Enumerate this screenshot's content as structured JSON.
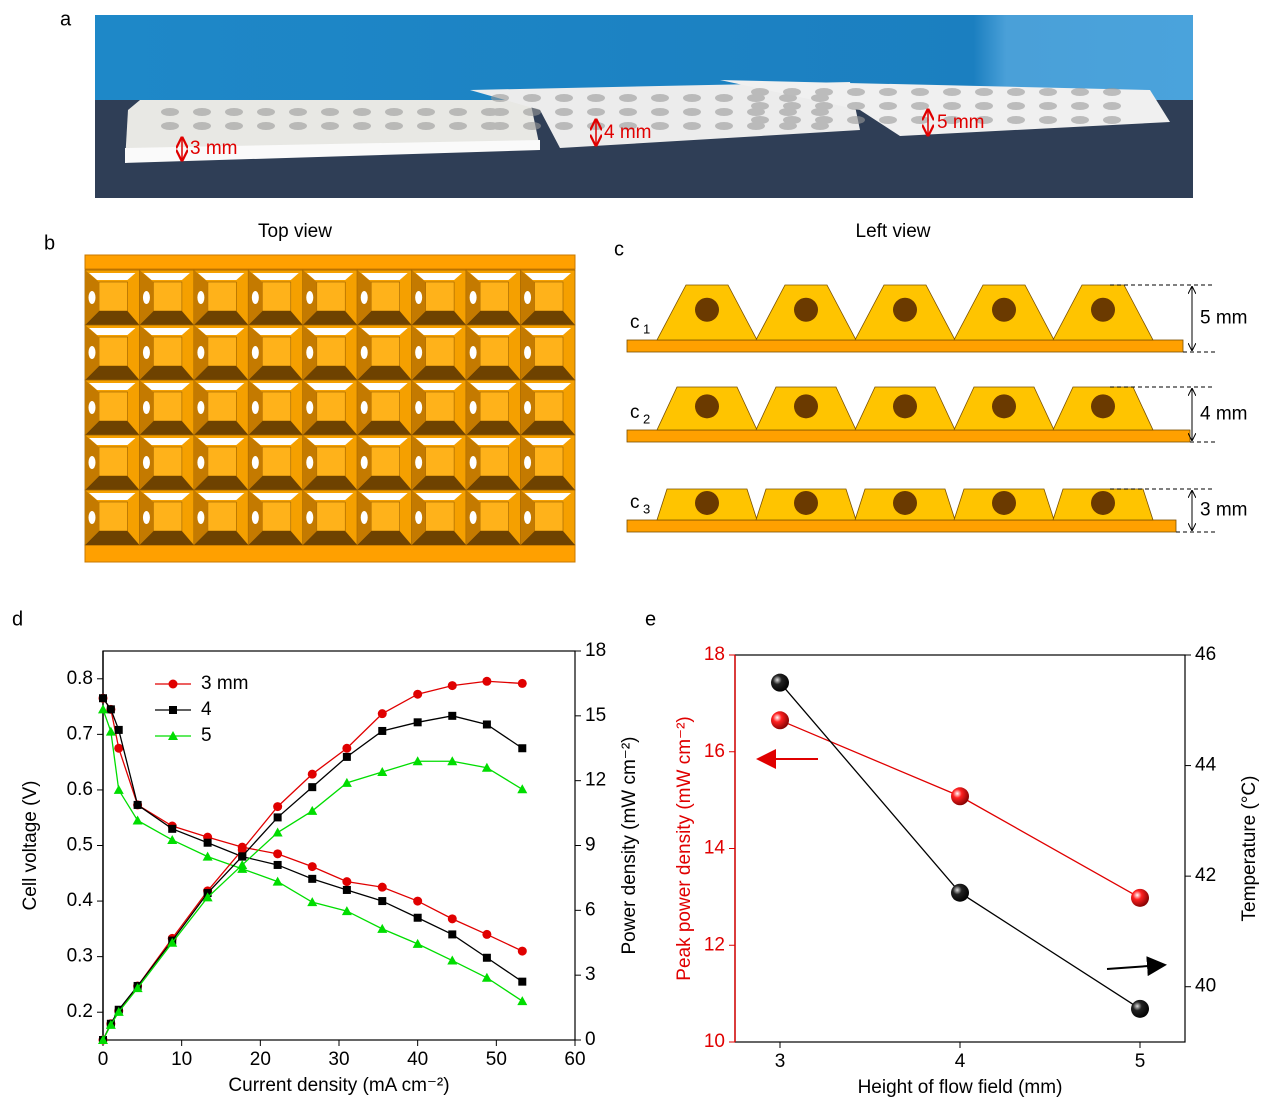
{
  "panels": {
    "a": {
      "label": "a",
      "annotations": [
        "3 mm",
        "4 mm",
        "5 mm"
      ]
    },
    "b": {
      "label": "b",
      "title": "Top view"
    },
    "c": {
      "label": "c",
      "title": "Left view",
      "rows": [
        {
          "label": "c",
          "sub": "1",
          "dimension": "5 mm"
        },
        {
          "label": "c",
          "sub": "2",
          "dimension": "4 mm"
        },
        {
          "label": "c",
          "sub": "3",
          "dimension": "3 mm"
        }
      ]
    },
    "d": {
      "label": "d"
    },
    "e": {
      "label": "e"
    }
  },
  "chart_data": [
    {
      "type": "line",
      "xlabel": "Current density (mA cm⁻²)",
      "ylabel": "Cell voltage (V)",
      "y2label": "Power density (mW cm⁻²)",
      "x": [
        0,
        1,
        2,
        4.4,
        8.8,
        13.3,
        17.7,
        22.2,
        26.6,
        31,
        35.5,
        40,
        44.4,
        48.8,
        53.3
      ],
      "xlim": [
        0,
        60
      ],
      "xticks": [
        0,
        10,
        20,
        30,
        40,
        50,
        60
      ],
      "ylim": [
        0.15,
        0.85
      ],
      "yticks": [
        0.2,
        0.3,
        0.4,
        0.5,
        0.6,
        0.7,
        0.8
      ],
      "y2lim": [
        0,
        18
      ],
      "y2ticks": [
        0,
        3,
        6,
        9,
        12,
        15,
        18
      ],
      "legend": "top-left",
      "series": [
        {
          "name": "3 mm",
          "color": "#e00000",
          "marker": "circle",
          "values": [
            0.765,
            0.745,
            0.675,
            0.573,
            0.535,
            0.515,
            0.497,
            0.485,
            0.462,
            0.435,
            0.425,
            0.4,
            0.368,
            0.34,
            0.31
          ]
        },
        {
          "name": "4",
          "color": "#000000",
          "marker": "square",
          "values": [
            0.765,
            0.745,
            0.708,
            0.573,
            0.53,
            0.505,
            0.48,
            0.465,
            0.44,
            0.42,
            0.4,
            0.37,
            0.34,
            0.298,
            0.255
          ]
        },
        {
          "name": "5",
          "color": "#00dd00",
          "marker": "triangle",
          "values": [
            0.745,
            0.705,
            0.6,
            0.545,
            0.51,
            0.48,
            0.458,
            0.435,
            0.398,
            0.382,
            0.35,
            0.323,
            0.293,
            0.262,
            0.22
          ]
        },
        {
          "color": "#e00000",
          "marker": "circle",
          "axis": "y2",
          "values": [
            0,
            0.75,
            1.35,
            2.5,
            4.7,
            6.9,
            8.8,
            10.8,
            12.3,
            13.5,
            15.1,
            16.0,
            16.4,
            16.6,
            16.5
          ]
        },
        {
          "color": "#000000",
          "marker": "square",
          "axis": "y2",
          "values": [
            0,
            0.75,
            1.4,
            2.5,
            4.6,
            6.8,
            8.5,
            10.3,
            11.7,
            13.1,
            14.3,
            14.7,
            15.0,
            14.6,
            13.5
          ]
        },
        {
          "color": "#00dd00",
          "marker": "triangle",
          "axis": "y2",
          "values": [
            0,
            0.7,
            1.3,
            2.4,
            4.5,
            6.6,
            8.1,
            9.6,
            10.6,
            11.9,
            12.4,
            12.9,
            12.9,
            12.6,
            11.6
          ]
        }
      ]
    },
    {
      "type": "line",
      "xlabel": "Height  of flow field (mm)",
      "ylabel": "Peak power density (mW cm⁻²)",
      "y2label": "Temperature (°C)",
      "ylabel_color": "#e00000",
      "x": [
        3,
        4,
        5
      ],
      "xlim": [
        2.75,
        5.25
      ],
      "xticks": [
        3,
        4,
        5
      ],
      "ylim": [
        10,
        18
      ],
      "yticks": [
        10,
        12,
        14,
        16,
        18
      ],
      "y2lim": [
        39,
        46
      ],
      "y2ticks": [
        40,
        42,
        44,
        46
      ],
      "series": [
        {
          "color": "#e00000",
          "marker": "sphere",
          "values": [
            16.65,
            15.08,
            12.98
          ]
        },
        {
          "color": "#000000",
          "marker": "sphere",
          "axis": "y2",
          "values": [
            45.5,
            41.7,
            39.6
          ]
        }
      ]
    }
  ]
}
